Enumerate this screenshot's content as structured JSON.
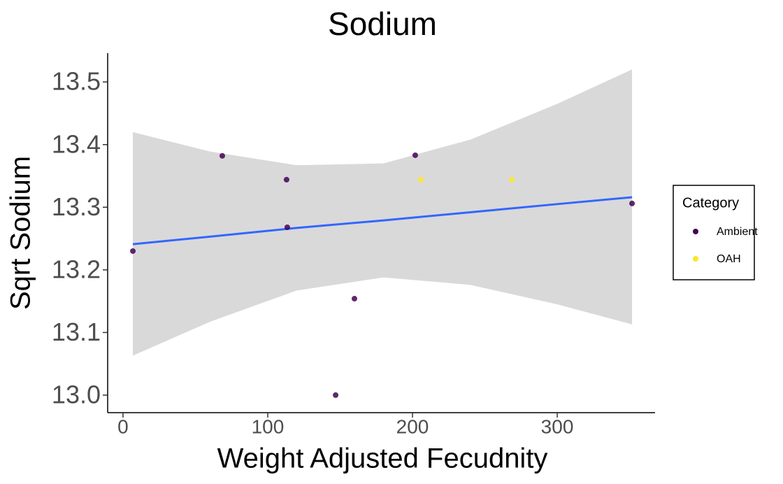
{
  "chart_data": {
    "type": "scatter",
    "title": "Sodium",
    "x_label": "Weight Adjusted Fecudnity",
    "y_label": "Sqrt Sodium",
    "xlim": [
      -10.6,
      367.6
    ],
    "ylim": [
      12.972,
      13.546
    ],
    "xticks": [
      0,
      100,
      200,
      300
    ],
    "yticks": [
      {
        "value": 13,
        "label": "13.0"
      },
      13.1,
      13.2,
      13.3,
      13.4,
      13.5
    ],
    "legend_title": "Category",
    "legend_position": "right",
    "series": [
      {
        "name": "Ambient",
        "color": "#440154",
        "x": [
          6.8,
          68.6,
          113,
          113.5,
          146.9,
          159.9,
          201.9,
          351.7
        ],
        "values": [
          13.23,
          13.382,
          13.344,
          13.268,
          13.0,
          13.154,
          13.383,
          13.306
        ]
      },
      {
        "name": "OAH",
        "color": "#fde725",
        "x": [
          205.8,
          268.6
        ],
        "values": [
          13.344,
          13.344
        ]
      }
    ],
    "fit": {
      "color": "#3366ff",
      "band_color": "#d9d9d9",
      "x": [
        6.8,
        60,
        120,
        180,
        240,
        300,
        351.7
      ],
      "y": [
        13.241,
        13.253,
        13.267,
        13.279,
        13.292,
        13.305,
        13.316
      ],
      "lower": [
        13.063,
        13.117,
        13.167,
        13.188,
        13.176,
        13.145,
        13.113
      ],
      "upper": [
        13.42,
        13.389,
        13.367,
        13.37,
        13.408,
        13.465,
        13.52
      ]
    }
  }
}
